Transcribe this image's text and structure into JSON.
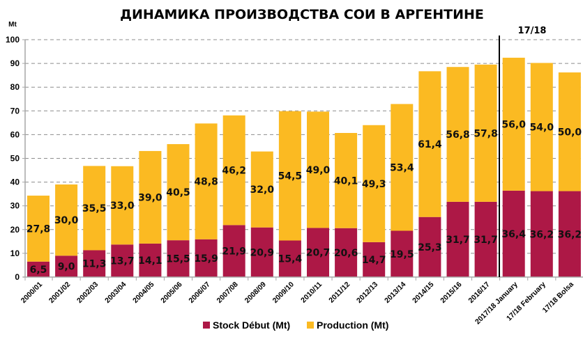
{
  "chart_data": {
    "type": "bar",
    "stacked": true,
    "title": "ДИНАМИКА ПРОИЗВОДСТВА СОИ В АРГЕНТИНЕ",
    "ylabel": "Mt",
    "xlabel": "",
    "ylim": [
      0,
      100
    ],
    "yticks": [
      "0",
      "10",
      "20",
      "30",
      "40",
      "50",
      "60",
      "70",
      "80",
      "90",
      "100"
    ],
    "grid": true,
    "legend_position": "bottom",
    "annotation": "17/18",
    "categories": [
      "2000/01",
      "2001/02",
      "2002/03",
      "2003/04",
      "2004/05",
      "2005/06",
      "2006/07",
      "2007/08",
      "2008/09",
      "2009/10",
      "2010/11",
      "2011/12",
      "2012/13",
      "2013/14",
      "2014/15",
      "2015/16",
      "2016/17",
      "2017/18 January",
      "17/18 February",
      "17/18 Bolsa"
    ],
    "series": [
      {
        "name": "Stock Début (Mt)",
        "color": "#ad1846",
        "values": [
          6.5,
          9.0,
          11.3,
          13.7,
          14.1,
          15.5,
          15.9,
          21.9,
          20.9,
          15.4,
          20.7,
          20.6,
          14.7,
          19.5,
          25.3,
          31.7,
          31.7,
          36.4,
          36.2,
          36.2
        ],
        "labels": [
          "6,5",
          "9,0",
          "11,3",
          "13,7",
          "14,1",
          "15,5",
          "15,9",
          "21,9",
          "20,9",
          "15,4",
          "20,7",
          "20,6",
          "14,7",
          "19,5",
          "25,3",
          "31,7",
          "31,7",
          "36,4",
          "36,2",
          "36,2"
        ]
      },
      {
        "name": "Production (Mt)",
        "color": "#fbba22",
        "values": [
          27.8,
          30.0,
          35.5,
          33.0,
          39.0,
          40.5,
          48.8,
          46.2,
          32.0,
          54.5,
          49.0,
          40.1,
          49.3,
          53.4,
          61.4,
          56.8,
          57.8,
          56.0,
          54.0,
          50.0
        ],
        "labels": [
          "27,8",
          "30,0",
          "35,5",
          "33,0",
          "39,0",
          "40,5",
          "48,8",
          "46,2",
          "32,0",
          "54,5",
          "49,0",
          "40,1",
          "49,3",
          "53,4",
          "61,4",
          "56,8",
          "57,8",
          "56,0",
          "54,0",
          "50,0"
        ]
      }
    ]
  }
}
